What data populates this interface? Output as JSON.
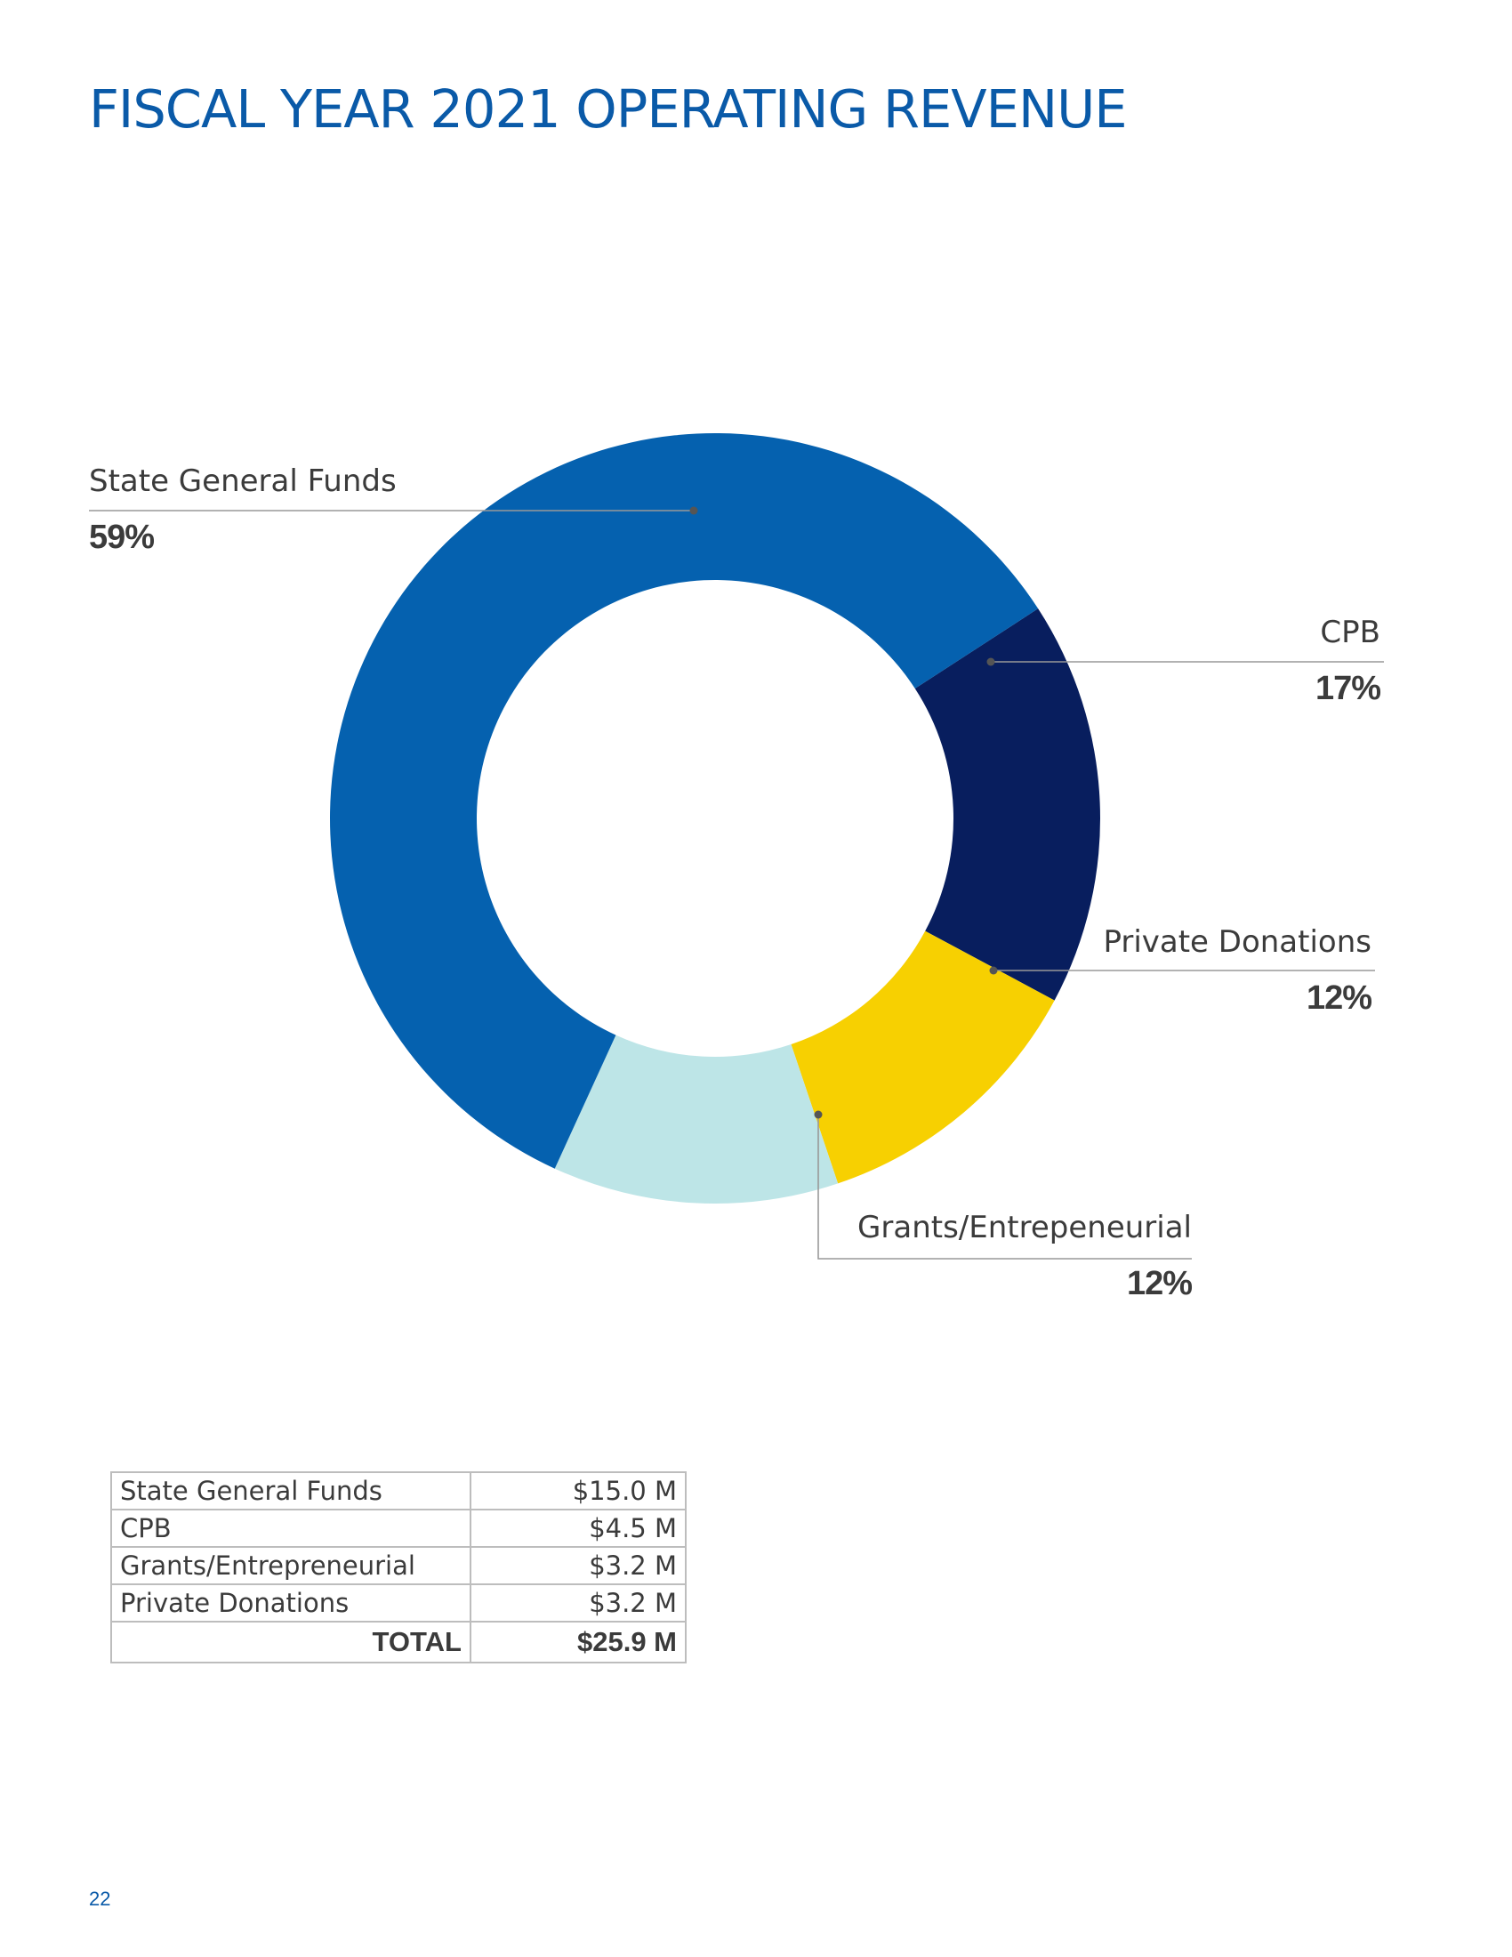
{
  "page": {
    "title": "FISCAL YEAR 2021 OPERATING REVENUE",
    "page_number": "22"
  },
  "colors": {
    "title": "#0a5aa8",
    "state_general_funds": "#0561af",
    "cpb": "#081e5e",
    "private_donations": "#f7d001",
    "grants_entrepreneurial": "#bde5e7",
    "leader_line": "#999999"
  },
  "chart_data": {
    "type": "pie",
    "style": "donut",
    "title": "FISCAL YEAR 2021 OPERATING REVENUE",
    "slices": [
      {
        "label": "State General Funds",
        "value": 59,
        "pct_label": "59%",
        "color": "#0561af"
      },
      {
        "label": "CPB",
        "value": 17,
        "pct_label": "17%",
        "color": "#081e5e"
      },
      {
        "label": "Private Donations",
        "value": 12,
        "pct_label": "12%",
        "color": "#f7d001"
      },
      {
        "label": "Grants/Entrepeneurial",
        "value": 12,
        "pct_label": "12%",
        "color": "#bde5e7"
      }
    ]
  },
  "table": {
    "rows": [
      {
        "label": "State General Funds",
        "amount": "$15.0 M"
      },
      {
        "label": "CPB",
        "amount": "$4.5 M"
      },
      {
        "label": "Grants/Entrepreneurial",
        "amount": "$3.2 M"
      },
      {
        "label": "Private Donations",
        "amount": "$3.2 M"
      }
    ],
    "total_label": "TOTAL",
    "total_amount": "$25.9 M"
  }
}
